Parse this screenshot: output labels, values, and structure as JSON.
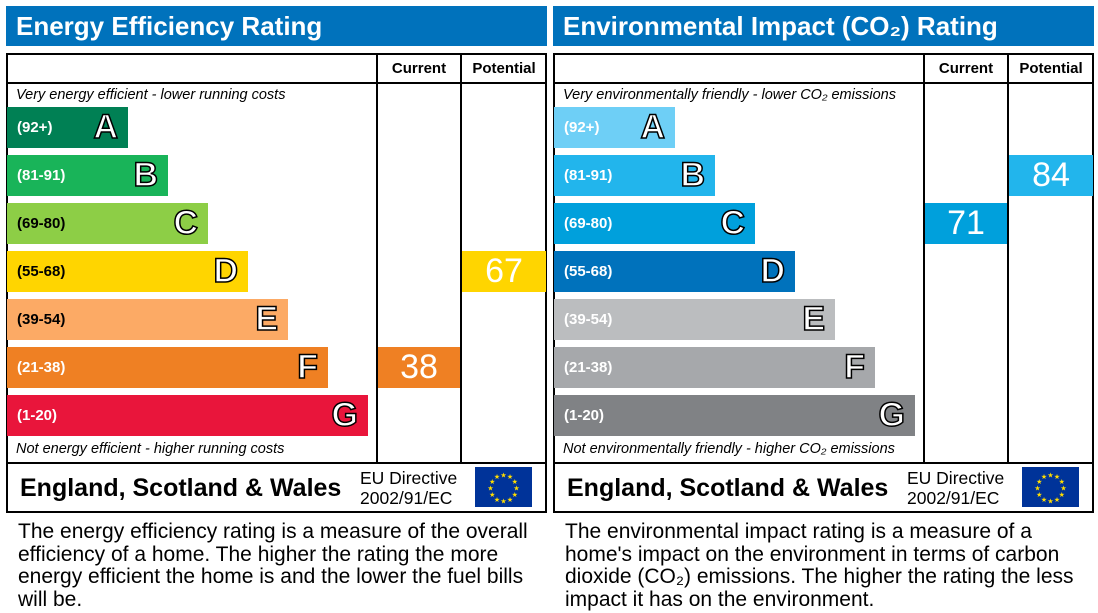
{
  "chart_data": [
    {
      "type": "bar",
      "title": "Energy Efficiency Rating",
      "columns": [
        "Current",
        "Potential"
      ],
      "top_note": "Very energy efficient - lower running costs",
      "bottom_note": "Not energy efficient - higher running costs",
      "bands": [
        {
          "letter": "A",
          "range": "(92+)",
          "color": "#008054"
        },
        {
          "letter": "B",
          "range": "(81-91)",
          "color": "#19b459"
        },
        {
          "letter": "C",
          "range": "(69-80)",
          "color": "#8dce46"
        },
        {
          "letter": "D",
          "range": "(55-68)",
          "color": "#ffd500"
        },
        {
          "letter": "E",
          "range": "(39-54)",
          "color": "#fcaa65"
        },
        {
          "letter": "F",
          "range": "(21-38)",
          "color": "#ef8023"
        },
        {
          "letter": "G",
          "range": "(1-20)",
          "color": "#e9153b"
        }
      ],
      "current": {
        "value": 38,
        "band": "F"
      },
      "potential": {
        "value": 67,
        "band": "D"
      },
      "footer_region": "England, Scotland & Wales",
      "footer_directive": [
        "EU Directive",
        "2002/91/EC"
      ],
      "description": "The energy efficiency rating is a measure of the overall efficiency of a home. The higher the rating the more energy efficient the home is and the lower the fuel bills will be."
    },
    {
      "type": "bar",
      "title": "Environmental Impact (CO₂) Rating",
      "columns": [
        "Current",
        "Potential"
      ],
      "top_note": "Very environmentally friendly - lower CO₂ emissions",
      "bottom_note": "Not environmentally friendly - higher CO₂ emissions",
      "bands": [
        {
          "letter": "A",
          "range": "(92+)",
          "color": "#6ecff6"
        },
        {
          "letter": "B",
          "range": "(81-91)",
          "color": "#22b5ec"
        },
        {
          "letter": "C",
          "range": "(69-80)",
          "color": "#00a0dc"
        },
        {
          "letter": "D",
          "range": "(55-68)",
          "color": "#0072bc"
        },
        {
          "letter": "E",
          "range": "(39-54)",
          "color": "#bbbdbf"
        },
        {
          "letter": "F",
          "range": "(21-38)",
          "color": "#a6a8ab"
        },
        {
          "letter": "G",
          "range": "(1-20)",
          "color": "#808285"
        }
      ],
      "current": {
        "value": 71,
        "band": "C"
      },
      "potential": {
        "value": 84,
        "band": "B"
      },
      "footer_region": "England, Scotland & Wales",
      "footer_directive": [
        "EU Directive",
        "2002/91/EC"
      ],
      "description": "The environmental impact rating is a measure of a home's impact on the environment in terms of carbon dioxide (CO₂) emissions. The higher the rating the less impact it has on the environment."
    }
  ]
}
